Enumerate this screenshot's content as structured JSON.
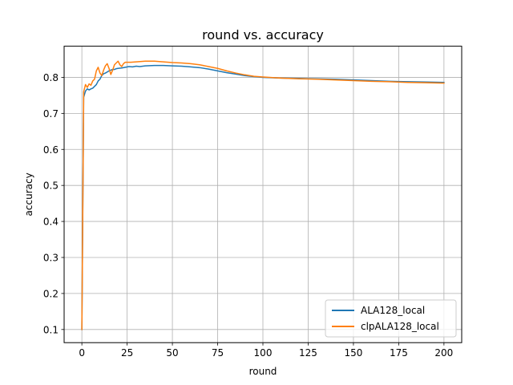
{
  "chart_data": {
    "type": "line",
    "title": "round vs. accuracy",
    "xlabel": "round",
    "ylabel": "accuracy",
    "xlim": [
      -9.8,
      209.8
    ],
    "ylim": [
      0.0635,
      0.8865
    ],
    "xticks": [
      0,
      25,
      50,
      75,
      100,
      125,
      150,
      175,
      200
    ],
    "yticks": [
      0.1,
      0.2,
      0.3,
      0.4,
      0.5,
      0.6,
      0.7,
      0.8
    ],
    "ytick_labels": [
      "0.1",
      "0.2",
      "0.3",
      "0.4",
      "0.5",
      "0.6",
      "0.7",
      "0.8"
    ],
    "xtick_labels": [
      "0",
      "25",
      "50",
      "75",
      "100",
      "125",
      "150",
      "175",
      "200"
    ],
    "grid": true,
    "legend_position": "lower-right",
    "series": [
      {
        "name": "ALA128_local",
        "color": "#1f77b4",
        "x": [
          0,
          1,
          2,
          3,
          4,
          5,
          6,
          7,
          8,
          9,
          10,
          11,
          12,
          13,
          14,
          15,
          16,
          17,
          18,
          19,
          20,
          22,
          24,
          26,
          28,
          30,
          32,
          35,
          40,
          45,
          50,
          55,
          60,
          65,
          70,
          75,
          80,
          85,
          90,
          95,
          100,
          110,
          120,
          130,
          140,
          150,
          160,
          170,
          180,
          190,
          200
        ],
        "y": [
          0.1,
          0.745,
          0.762,
          0.768,
          0.765,
          0.768,
          0.77,
          0.775,
          0.78,
          0.79,
          0.795,
          0.805,
          0.81,
          0.812,
          0.815,
          0.818,
          0.82,
          0.822,
          0.822,
          0.824,
          0.825,
          0.826,
          0.828,
          0.83,
          0.829,
          0.831,
          0.83,
          0.832,
          0.833,
          0.833,
          0.832,
          0.831,
          0.829,
          0.827,
          0.823,
          0.818,
          0.813,
          0.809,
          0.805,
          0.802,
          0.8,
          0.798,
          0.797,
          0.796,
          0.795,
          0.793,
          0.791,
          0.789,
          0.788,
          0.787,
          0.786
        ]
      },
      {
        "name": "clpALA128_local",
        "color": "#ff7f0e",
        "x": [
          0,
          1,
          2,
          3,
          4,
          5,
          6,
          7,
          8,
          9,
          10,
          11,
          12,
          13,
          14,
          15,
          16,
          17,
          18,
          19,
          20,
          21,
          22,
          23,
          24,
          25,
          27,
          30,
          35,
          40,
          45,
          50,
          55,
          60,
          65,
          70,
          75,
          80,
          85,
          90,
          95,
          100,
          110,
          120,
          130,
          140,
          150,
          160,
          170,
          180,
          190,
          200
        ],
        "y": [
          0.1,
          0.76,
          0.78,
          0.772,
          0.782,
          0.778,
          0.79,
          0.795,
          0.818,
          0.828,
          0.812,
          0.805,
          0.82,
          0.832,
          0.838,
          0.825,
          0.808,
          0.82,
          0.835,
          0.84,
          0.845,
          0.835,
          0.83,
          0.838,
          0.842,
          0.842,
          0.842,
          0.843,
          0.845,
          0.845,
          0.843,
          0.841,
          0.84,
          0.838,
          0.835,
          0.83,
          0.825,
          0.818,
          0.812,
          0.807,
          0.803,
          0.801,
          0.798,
          0.796,
          0.795,
          0.793,
          0.791,
          0.789,
          0.788,
          0.786,
          0.785,
          0.784
        ]
      }
    ]
  }
}
